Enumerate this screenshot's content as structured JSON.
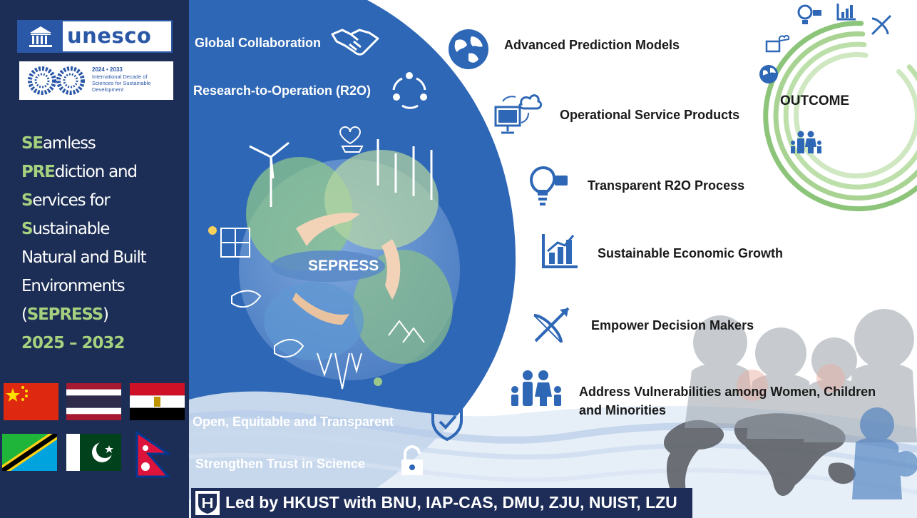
{
  "left_panel": {
    "logo_text": "unesco",
    "decade": {
      "years": "2024 • 2033",
      "text": "International Decade of Sciences for Sustainable Development"
    },
    "title_lines": [
      {
        "accent": "SE",
        "rest": "amless"
      },
      {
        "accent": "PRE",
        "rest": "diction and"
      },
      {
        "accent": "S",
        "rest": "ervices for"
      },
      {
        "accent": "S",
        "rest": "ustainable"
      },
      {
        "accent": "",
        "rest": "Natural and Built"
      },
      {
        "accent": "",
        "rest": "Environments"
      }
    ],
    "acronym": {
      "open": "(",
      "name": "SEPRESS",
      "close": ")"
    },
    "years": "2025 – 2032"
  },
  "center": {
    "hub_label": "SEPRESS",
    "items": [
      {
        "label": "Global Collaboration",
        "icon": "handshake-icon"
      },
      {
        "label": "Research-to-Operation (R2O)",
        "icon": "cycle-arrows-icon"
      },
      {
        "label": "Open, Equitable and Transparent",
        "icon": "shield-check-icon"
      },
      {
        "label": "Strengthen Trust in Science",
        "icon": "unlock-icon"
      }
    ]
  },
  "right": {
    "items": [
      {
        "label": "Advanced Prediction Models",
        "icon": "globe-icon"
      },
      {
        "label": "Operational Service Products",
        "icon": "computer-cloud-icon"
      },
      {
        "label": "Transparent R2O Process",
        "icon": "lightbulb-icon"
      },
      {
        "label": "Sustainable Economic Growth",
        "icon": "bar-chart-icon"
      },
      {
        "label": "Empower Decision Makers",
        "icon": "bow-arrow-icon"
      },
      {
        "label_line1": "Address Vulnerabilities among Women, Children",
        "label_line2": "and Minorities",
        "icon": "family-icon"
      }
    ],
    "outcome_label": "OUTCOME"
  },
  "footer": {
    "text": "Led by  HKUST with BNU, IAP-CAS, DMU, ZJU, NUIST, LZU"
  },
  "colors": {
    "navy": "#1c2e55",
    "blue": "#2e67b6",
    "accent_green": "#a6d17e",
    "ring_green": "#8cc47a"
  }
}
